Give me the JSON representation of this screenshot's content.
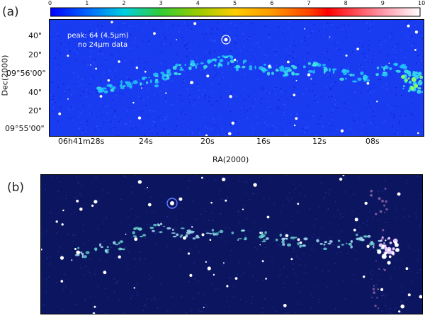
{
  "panel_a": {
    "label": "(a)",
    "colorbar": {
      "ticks": [
        "0",
        "1",
        "2",
        "3",
        "4",
        "5",
        "6",
        "7",
        "8",
        "9",
        "10"
      ],
      "colors": [
        "#0000ff",
        "#0066ff",
        "#00e0e0",
        "#33cc33",
        "#99cc00",
        "#ffcc00",
        "#ff9900",
        "#ff4400",
        "#ff0000",
        "#ff99aa",
        "#ffffff"
      ]
    },
    "note_line1": "peak: 64 (4.5μm)",
    "note_line2": "no 24μm data",
    "y_axis_title": "Dec(2000)",
    "y_ticks": [
      "40\"",
      "20\"",
      "09°56'00\"",
      "40\"",
      "20\"",
      "09°55'00\""
    ],
    "x_ticks": [
      "06h41m28s",
      "24s",
      "20s",
      "16s",
      "12s",
      "08s"
    ],
    "x_axis_title": "RA(2000)",
    "background_color": "#1a3cf0"
  },
  "panel_b": {
    "label": "(b)",
    "background_color": "#0c1660"
  }
}
